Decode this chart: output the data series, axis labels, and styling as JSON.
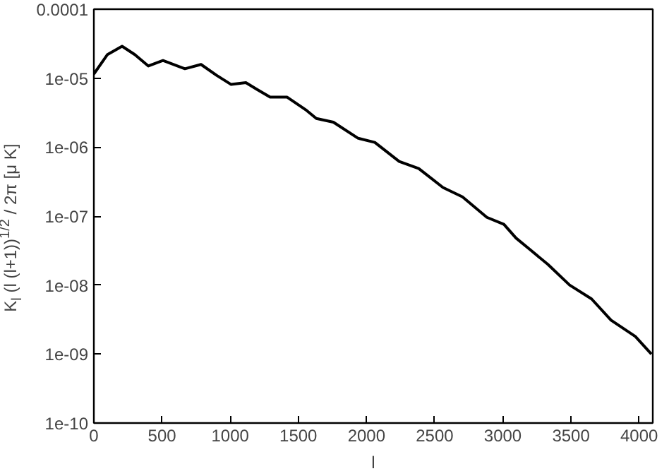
{
  "chart_data": {
    "type": "line",
    "xlabel": "l",
    "ylabel": "K$_{l}$ (l (l+1))$^{1/2}$ / 2π [μ K]",
    "log": "y",
    "grid": false,
    "marker": "none",
    "line_style": "solid",
    "xlim": [
      0,
      4100
    ],
    "ylim": [
      1e-10,
      0.0001
    ],
    "xticks": [
      0,
      500,
      1000,
      1500,
      2000,
      2500,
      3000,
      3500,
      4000
    ],
    "yticks": [
      {
        "value": 1e-10,
        "label": "1e-10"
      },
      {
        "value": 1e-09,
        "label": "1e-09"
      },
      {
        "value": 1e-08,
        "label": "1e-08"
      },
      {
        "value": 1e-07,
        "label": "1e-07"
      },
      {
        "value": 1e-06,
        "label": "1e-06"
      },
      {
        "value": 1e-05,
        "label": "1e-05"
      },
      0.0001
    ],
    "series": [
      {
        "color": "#000000",
        "x": [
          0,
          100,
          207,
          300,
          400,
          507,
          668,
          786,
          900,
          1007,
          1115,
          1200,
          1293,
          1418,
          1561,
          1632,
          1757,
          1937,
          2061,
          2240,
          2383,
          2561,
          2704,
          2883,
          3008,
          3097,
          3205,
          3330,
          3490,
          3651,
          3794,
          3972,
          4090
        ],
        "values": [
          1.15e-05,
          2.2e-05,
          2.9e-05,
          2.2e-05,
          1.5e-05,
          1.8e-05,
          1.37e-05,
          1.58e-05,
          1.1e-05,
          8.1e-06,
          8.6e-06,
          6.8e-06,
          5.3e-06,
          5.3e-06,
          3.4e-06,
          2.6e-06,
          2.3e-06,
          1.35e-06,
          1.17e-06,
          6.2e-07,
          4.9e-07,
          2.6e-07,
          1.9e-07,
          9.6e-08,
          7.6e-08,
          4.8e-08,
          3.2e-08,
          2e-08,
          1e-08,
          6.3e-09,
          3.1e-09,
          1.8e-09,
          1e-09
        ]
      }
    ]
  }
}
